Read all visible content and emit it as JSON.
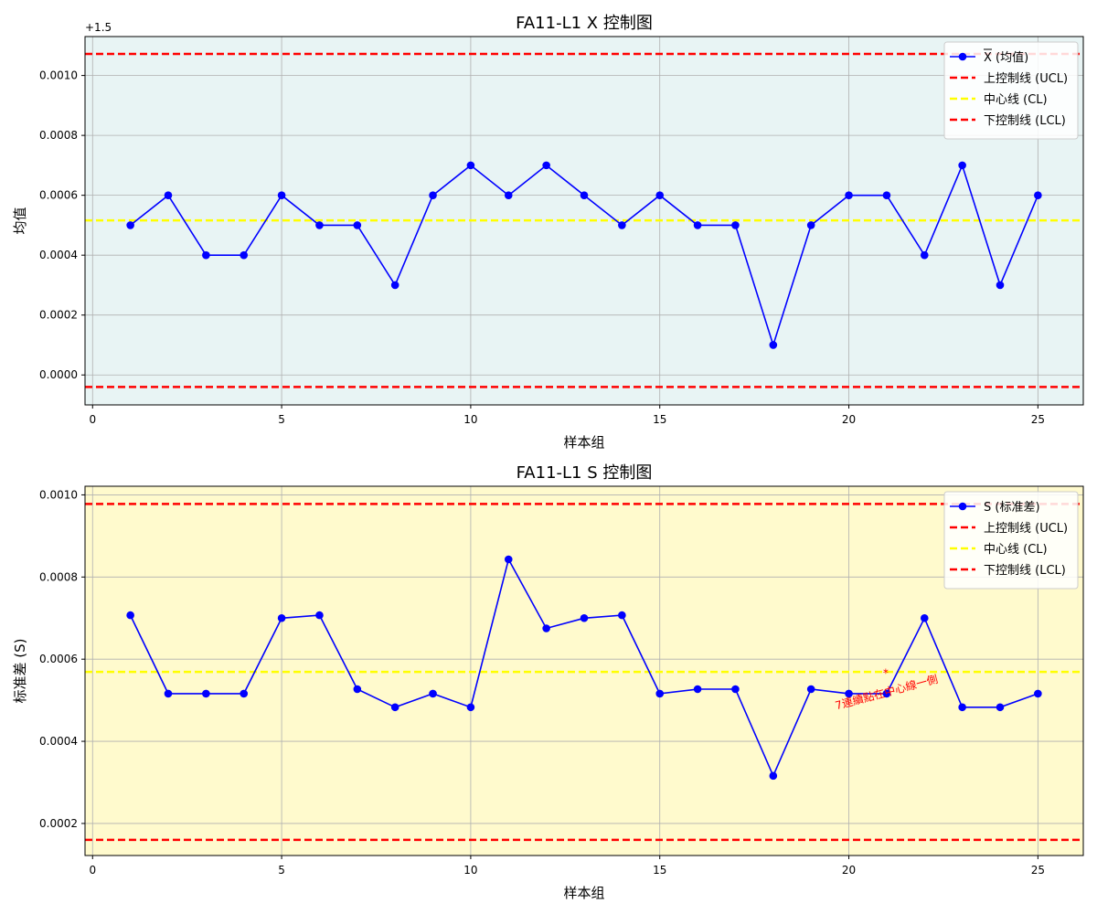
{
  "chart_data": [
    {
      "type": "line",
      "title": "FA11-L1 X 控制图",
      "xlabel": "样本组",
      "ylabel": "均值",
      "offset_label": "+1.5",
      "background": "#e8f4f4",
      "xlim": [
        -0.2,
        26.2
      ],
      "ylim": [
        -0.0001,
        0.00113
      ],
      "x_ticks": [
        0,
        5,
        10,
        15,
        20,
        25
      ],
      "x_tick_labels": [
        "0",
        "5",
        "10",
        "15",
        "20",
        "25"
      ],
      "y_ticks": [
        0.0,
        0.0002,
        0.0004,
        0.0006,
        0.0008,
        0.001
      ],
      "y_tick_labels": [
        "0.0000",
        "0.0002",
        "0.0004",
        "0.0006",
        "0.0008",
        "0.0010"
      ],
      "grid": true,
      "legend_position": "top-right",
      "x": [
        1,
        2,
        3,
        4,
        5,
        6,
        7,
        8,
        9,
        10,
        11,
        12,
        13,
        14,
        15,
        16,
        17,
        18,
        19,
        20,
        21,
        22,
        23,
        24,
        25
      ],
      "series": [
        {
          "name": "X (均值)",
          "color": "#0000ff",
          "values": [
            0.0005,
            0.0006,
            0.0004,
            0.0004,
            0.0006,
            0.0005,
            0.0005,
            0.0003,
            0.0006,
            0.0007,
            0.0006,
            0.0007,
            0.0006,
            0.0005,
            0.0006,
            0.0005,
            0.0005,
            0.0001,
            0.0005,
            0.0006,
            0.0006,
            0.0004,
            0.0007,
            0.0003,
            0.0006
          ]
        }
      ],
      "hlines": [
        {
          "name": "上控制线 (UCL)",
          "value": 0.001072,
          "color": "#ff0000"
        },
        {
          "name": "中心线 (CL)",
          "value": 0.000516,
          "color": "#ffff00"
        },
        {
          "name": "下控制线 (LCL)",
          "value": -4e-05,
          "color": "#ff0000"
        }
      ],
      "annotations": []
    },
    {
      "type": "line",
      "title": "FA11-L1 S 控制图",
      "xlabel": "样本组",
      "ylabel": "标准差 (S)",
      "offset_label": "",
      "background": "#fffacd",
      "xlim": [
        -0.2,
        26.2
      ],
      "ylim": [
        0.000122,
        0.001021
      ],
      "x_ticks": [
        0,
        5,
        10,
        15,
        20,
        25
      ],
      "x_tick_labels": [
        "0",
        "5",
        "10",
        "15",
        "20",
        "25"
      ],
      "y_ticks": [
        0.0002,
        0.0004,
        0.0006,
        0.0008,
        0.001
      ],
      "y_tick_labels": [
        "0.0002",
        "0.0004",
        "0.0006",
        "0.0008",
        "0.0010"
      ],
      "grid": true,
      "legend_position": "top-right",
      "x": [
        1,
        2,
        3,
        4,
        5,
        6,
        7,
        8,
        9,
        10,
        11,
        12,
        13,
        14,
        15,
        16,
        17,
        18,
        19,
        20,
        21,
        22,
        23,
        24,
        25
      ],
      "series": [
        {
          "name": "S (标准差)",
          "color": "#0000ff",
          "values": [
            0.000707,
            0.000516,
            0.000516,
            0.000516,
            0.0007,
            0.000707,
            0.000527,
            0.000483,
            0.000516,
            0.000483,
            0.000843,
            0.000675,
            0.0007,
            0.000707,
            0.000516,
            0.000527,
            0.000527,
            0.000316,
            0.000527,
            0.000516,
            0.000516,
            0.0007,
            0.000483,
            0.000483,
            0.000516
          ]
        }
      ],
      "hlines": [
        {
          "name": "上控制线 (UCL)",
          "value": 0.000978,
          "color": "#ff0000"
        },
        {
          "name": "中心线 (CL)",
          "value": 0.000569,
          "color": "#ffff00"
        },
        {
          "name": "下控制线 (LCL)",
          "value": 0.00016,
          "color": "#ff0000"
        }
      ],
      "annotations": [
        {
          "marker_label": "*",
          "text": "7連續點在中心線一側",
          "x": 21,
          "y": 0.000535,
          "color": "#ff0000"
        }
      ]
    }
  ]
}
